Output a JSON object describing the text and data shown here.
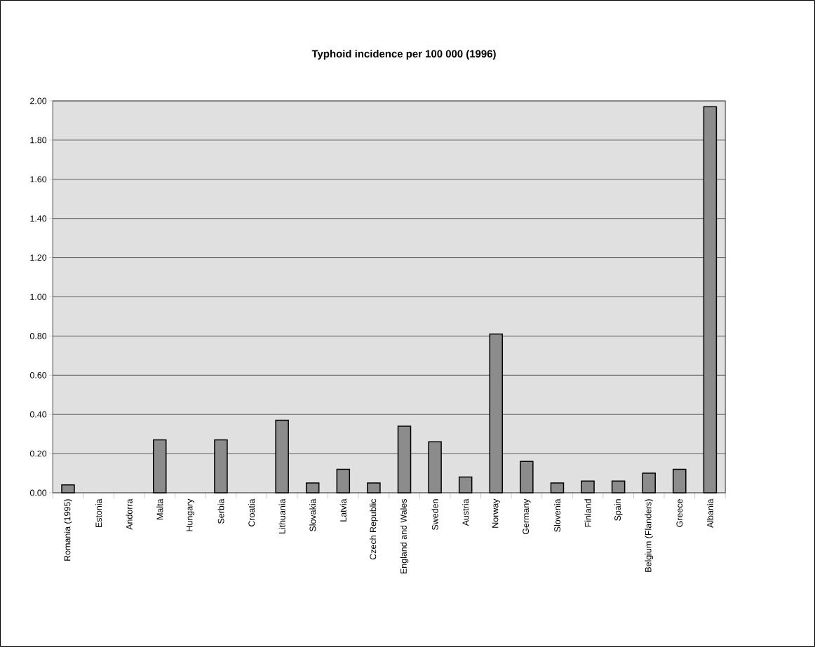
{
  "chart_data": {
    "type": "bar",
    "title": "Typhoid incidence per 100 000 (1996)",
    "categories": [
      "Romania (1995)",
      "Estonia",
      "Andorra",
      "Malta",
      "Hungary",
      "Serbia",
      "Croatia",
      "Lithuania",
      "Slovakia",
      "Latvia",
      "Czech Republic",
      "England and Wales",
      "Sweden",
      "Austria",
      "Norway",
      "Germany",
      "Slovenia",
      "Finland",
      "Spain",
      "Belgium (Flanders)",
      "Greece",
      "Albania"
    ],
    "values": [
      0.04,
      null,
      null,
      0.27,
      null,
      0.27,
      null,
      0.37,
      0.05,
      0.12,
      0.05,
      0.34,
      0.26,
      0.08,
      0.81,
      0.16,
      0.05,
      0.06,
      0.06,
      0.1,
      0.12,
      1.97
    ],
    "color": "#8c8c8c",
    "ylim": [
      0,
      2
    ],
    "yticks": [
      {
        "value": 0,
        "label": "0.00"
      },
      {
        "value": 0.2,
        "label": "0.20"
      },
      {
        "value": 0.4,
        "label": "0.40"
      },
      {
        "value": 0.6,
        "label": "0.60"
      },
      {
        "value": 0.8,
        "label": "0.80"
      },
      {
        "value": 1,
        "label": "1.00"
      },
      {
        "value": 1.2,
        "label": "1.20"
      },
      {
        "value": 1.4,
        "label": "1.40"
      },
      {
        "value": 1.6,
        "label": "1.60"
      },
      {
        "value": 1.8,
        "label": "1.80"
      },
      {
        "value": 2,
        "label": "2.00"
      }
    ],
    "grid": "y"
  }
}
